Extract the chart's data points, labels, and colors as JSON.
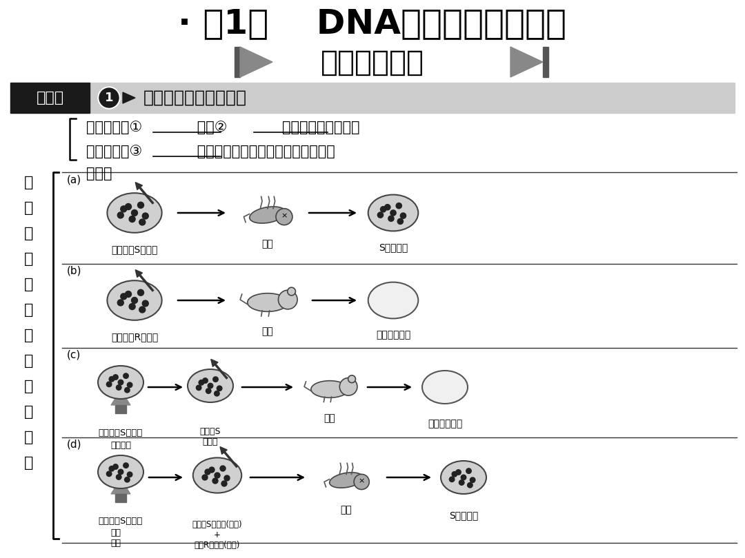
{
  "bg_color": "#ffffff",
  "title_main": "· 第1节    DNA是主要的遗传物质",
  "title_sub": "基础自主梳理",
  "knowledge_label": "知识点",
  "knowledge_num": "1",
  "knowledge_title": "肺炎双球菌的转化实验",
  "exp_materials": "实验材料：①            型和②            型肺炎双球菌、小鼠",
  "exp_principle": "实验原理：③            型细菌使人患肺炎或使小鼠患败血症",
  "process_label": "过程：",
  "side_chars": [
    "体",
    "现",
    "肺",
    "炎",
    "双",
    "球",
    "菌",
    "的",
    "转",
    "化",
    "实",
    "验"
  ],
  "row_a_label": "(a)",
  "row_a_left": "活的有毒S型细菌",
  "row_a_mid": "死亡",
  "row_a_right": "S型活细菌",
  "row_b_label": "(b)",
  "row_b_left": "活的无毒R型细菌",
  "row_b_mid": "存活",
  "row_b_right": "无肺炎双球菌",
  "row_c_label": "(c)",
  "row_c_left": "活的有毒S型细菌",
  "row_c_subleft1": "加热灭活",
  "row_c_subleft2": "灭活的S\n型细菌",
  "row_c_mid": "存活",
  "row_c_right": "无肺炎双球菌",
  "row_d_label": "(d)",
  "row_d_left": "活的有毒S型细菌",
  "row_d_subleft1": "加热\n灭活",
  "row_d_subleft2": "灭活的S型细菌(无毒)\n+\n活的R型细菌(无毒)",
  "row_d_mid": "死亡",
  "row_d_right": "S型活细菌",
  "kp_bar_color": "#cccccc",
  "kp_dark_color": "#1a1a1a",
  "sep_line_color": "#333333"
}
